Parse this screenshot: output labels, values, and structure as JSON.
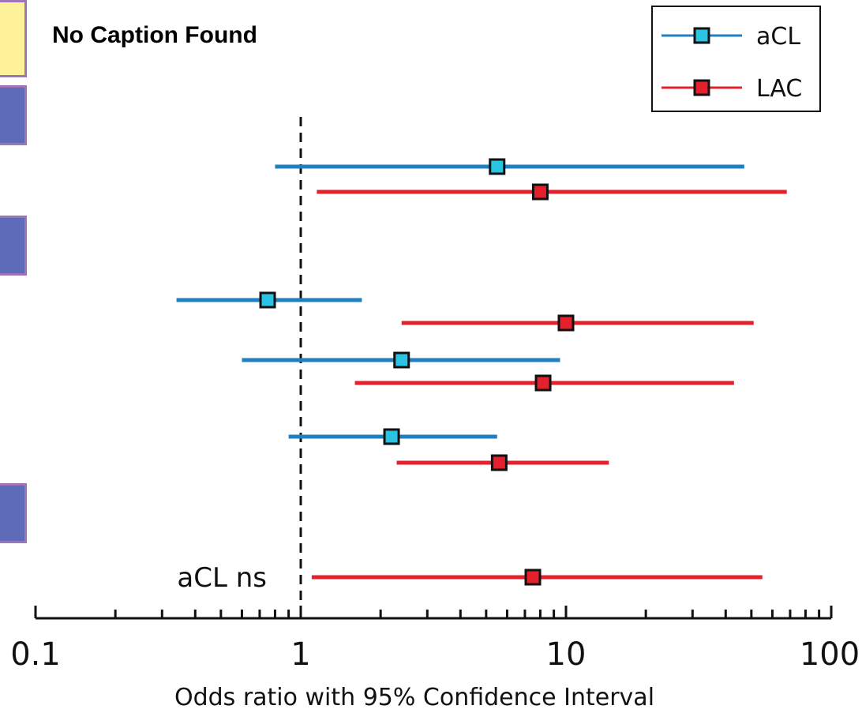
{
  "caption": "No Caption Found",
  "colors": {
    "aCL": "#1f7fc0",
    "aCL_marker": "#2bc3e3",
    "LAC": "#e3202b",
    "LAC_marker": "#e3202b"
  },
  "chart_data": {
    "type": "scatter",
    "subtype": "forest-plot",
    "xscale": "log",
    "xlim": [
      0.1,
      100
    ],
    "xlabel": "Odds ratio with 95% Confidence Interval",
    "xticks": [
      {
        "value": 0.1,
        "label": "0.1"
      },
      {
        "value": 1,
        "label": "1"
      },
      {
        "value": 10,
        "label": "10"
      },
      {
        "value": 100,
        "label": "100"
      }
    ],
    "reference_line": 1,
    "legend": {
      "position": "top-right",
      "entries": [
        "aCL",
        "LAC"
      ]
    },
    "series": [
      {
        "name": "aCL",
        "points": [
          {
            "row": 1,
            "or": 5.5,
            "lower": 0.8,
            "upper": 47
          },
          {
            "row": 3,
            "or": 0.75,
            "lower": 0.34,
            "upper": 1.7
          },
          {
            "row": 5,
            "or": 2.4,
            "lower": 0.6,
            "upper": 9.5
          },
          {
            "row": 7,
            "or": 2.2,
            "lower": 0.9,
            "upper": 5.5
          }
        ]
      },
      {
        "name": "LAC",
        "points": [
          {
            "row": 2,
            "or": 8,
            "lower": 1.15,
            "upper": 68
          },
          {
            "row": 4,
            "or": 10,
            "lower": 2.4,
            "upper": 51
          },
          {
            "row": 6,
            "or": 8.2,
            "lower": 1.6,
            "upper": 43
          },
          {
            "row": 8,
            "or": 5.6,
            "lower": 2.3,
            "upper": 14.5
          },
          {
            "row": 9,
            "or": 7.5,
            "lower": 1.1,
            "upper": 55
          }
        ]
      }
    ],
    "annotations": [
      {
        "text": "aCL ns",
        "row": 9
      }
    ]
  }
}
